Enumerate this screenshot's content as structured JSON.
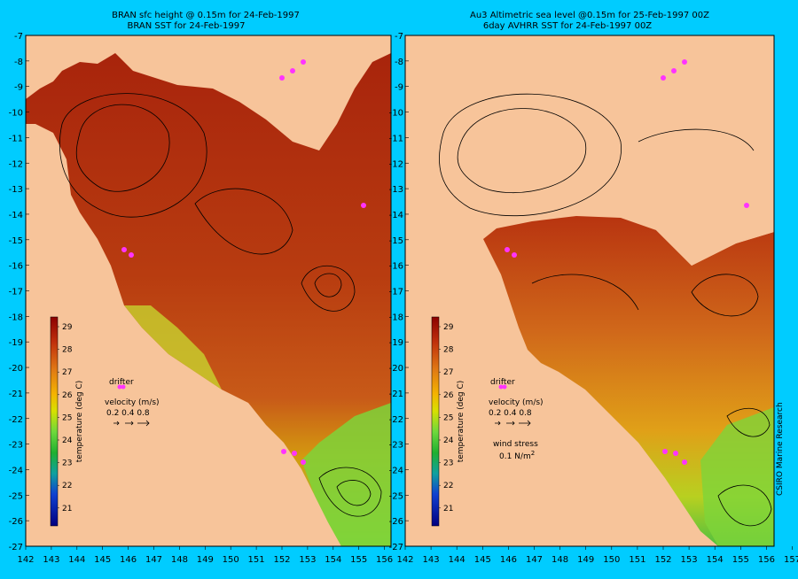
{
  "colors": {
    "background": "#00ccff",
    "land": "#f7c49a",
    "ocean_warm": "#b63a10",
    "ocean_mid": "#c8621e",
    "ocean_cool": "#7ed43a",
    "drifter": "#ff33ff"
  },
  "left_panel": {
    "title_line1": "BRAN sfc height @ 0.15m  for 24-Feb-1997",
    "title_line2": "BRAN SST for 24-Feb-1997"
  },
  "right_panel": {
    "title_line1": "Au3 Altimetric sea level  @0.15m  for 25-Feb-1997 00Z",
    "title_line2": "6day AVHRR SST for 24-Feb-1997 00Z"
  },
  "colorbar": {
    "ticks": [
      "29",
      "28",
      "27",
      "26",
      "25",
      "24",
      "23",
      "22",
      "21"
    ],
    "label": "temperature (deg C)"
  },
  "legend": {
    "drifter_label": "drifter",
    "velocity_label": "velocity (m/s)",
    "velocity_values": "0.2 0.4 0.8",
    "wind_label": "wind stress",
    "wind_value": "0.1 N/m",
    "wind_exponent": "2"
  },
  "axes": {
    "lon_ticks": [
      "142",
      "143",
      "144",
      "145",
      "146",
      "147",
      "148",
      "149",
      "150",
      "151",
      "152",
      "153",
      "154",
      "155",
      "156",
      "157"
    ],
    "lat_ticks": [
      "-7",
      "-8",
      "-9",
      "-10",
      "-11",
      "-12",
      "-13",
      "-14",
      "-15",
      "-16",
      "-17",
      "-18",
      "-19",
      "-20",
      "-21",
      "-22",
      "-23",
      "-24",
      "-25",
      "-26",
      "-27"
    ]
  },
  "credit": "CSIRO Marine Research"
}
